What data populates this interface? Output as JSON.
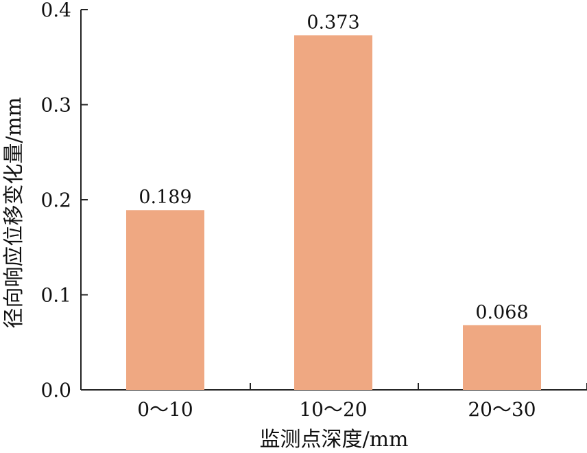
{
  "chart_data": {
    "type": "bar",
    "categories": [
      "0～10",
      "10～20",
      "20～30"
    ],
    "values": [
      0.189,
      0.373,
      0.068
    ],
    "data_labels": [
      "0.189",
      "0.373",
      "0.068"
    ],
    "title": "",
    "xlabel": "监测点深度/mm",
    "ylabel": "径向响应位移变化量/mm",
    "ylim": [
      0,
      0.4
    ],
    "yticks": [
      0.0,
      0.1,
      0.2,
      0.3,
      0.4
    ],
    "ytick_labels": [
      "0.0",
      "0.1",
      "0.2",
      "0.3",
      "0.4"
    ],
    "grid": false,
    "bar_color": "#EFA882"
  }
}
